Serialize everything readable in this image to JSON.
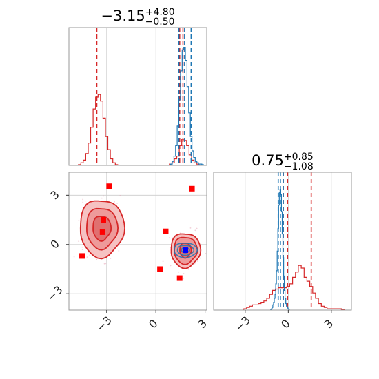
{
  "colors": {
    "blue": "#1f77b4",
    "red": "#d62728",
    "marker_red": "#ff0000",
    "marker_blue": "#0000ff",
    "grid": "#cccccc",
    "frame": "#999999"
  },
  "chart_data": {
    "type": "corner",
    "grid": true,
    "parameters": 2,
    "titles": [
      {
        "value": "−3.15",
        "plus": "+4.80",
        "minus": "−0.50"
      },
      {
        "value": "0.75",
        "plus": "+0.85",
        "minus": "−1.08"
      }
    ],
    "ticks": {
      "param1": [
        {
          "value": -3,
          "label": "−3"
        },
        {
          "value": 0,
          "label": "0"
        },
        {
          "value": 3,
          "label": "3"
        }
      ],
      "param2": [
        {
          "value": -3,
          "label": "−3"
        },
        {
          "value": 0,
          "label": "0"
        },
        {
          "value": 3,
          "label": "3"
        }
      ]
    },
    "xlim_param1": [
      -5.3,
      3.1
    ],
    "xlim_param2": [
      -5.2,
      4.4
    ],
    "ylim_param2": [
      -4.0,
      4.4
    ],
    "marginal_param1": {
      "xlim": [
        -5.3,
        3.1
      ],
      "ylim": [
        0,
        1.05
      ],
      "series": [
        {
          "name": "red",
          "color": "red",
          "bin_width": 0.15,
          "bins": [
            {
              "x": -4.65,
              "v": 0.005
            },
            {
              "x": -4.5,
              "v": 0.02
            },
            {
              "x": -4.35,
              "v": 0.04
            },
            {
              "x": -4.2,
              "v": 0.09
            },
            {
              "x": -4.05,
              "v": 0.17
            },
            {
              "x": -3.9,
              "v": 0.29
            },
            {
              "x": -3.75,
              "v": 0.43
            },
            {
              "x": -3.6,
              "v": 0.52
            },
            {
              "x": -3.45,
              "v": 0.54
            },
            {
              "x": -3.3,
              "v": 0.49
            },
            {
              "x": -3.15,
              "v": 0.36
            },
            {
              "x": -3.0,
              "v": 0.22
            },
            {
              "x": -2.85,
              "v": 0.12
            },
            {
              "x": -2.7,
              "v": 0.05
            },
            {
              "x": -2.55,
              "v": 0.02
            },
            {
              "x": -2.4,
              "v": 0.005
            },
            {
              "x": 0.9,
              "v": 0.01
            },
            {
              "x": 1.05,
              "v": 0.02
            },
            {
              "x": 1.2,
              "v": 0.05
            },
            {
              "x": 1.35,
              "v": 0.07
            },
            {
              "x": 1.5,
              "v": 0.15
            },
            {
              "x": 1.65,
              "v": 0.2
            },
            {
              "x": 1.8,
              "v": 0.19
            },
            {
              "x": 1.95,
              "v": 0.15
            },
            {
              "x": 2.1,
              "v": 0.08
            },
            {
              "x": 2.25,
              "v": 0.04
            },
            {
              "x": 2.4,
              "v": 0.02
            },
            {
              "x": 2.55,
              "v": 0.01
            }
          ],
          "quantiles": [
            -3.6,
            1.45,
            1.65
          ]
        },
        {
          "name": "blue",
          "color": "blue",
          "bin_width": 0.1,
          "bins": [
            {
              "x": 0.95,
              "v": 0.01
            },
            {
              "x": 1.05,
              "v": 0.03
            },
            {
              "x": 1.15,
              "v": 0.07
            },
            {
              "x": 1.25,
              "v": 0.15
            },
            {
              "x": 1.35,
              "v": 0.3
            },
            {
              "x": 1.45,
              "v": 0.5
            },
            {
              "x": 1.55,
              "v": 0.72
            },
            {
              "x": 1.65,
              "v": 0.88
            },
            {
              "x": 1.75,
              "v": 0.9
            },
            {
              "x": 1.85,
              "v": 0.8
            },
            {
              "x": 1.95,
              "v": 0.6
            },
            {
              "x": 2.05,
              "v": 0.4
            },
            {
              "x": 2.15,
              "v": 0.22
            },
            {
              "x": 2.25,
              "v": 0.11
            },
            {
              "x": 2.35,
              "v": 0.06
            },
            {
              "x": 2.45,
              "v": 0.03
            },
            {
              "x": 2.55,
              "v": 0.02
            },
            {
              "x": 2.65,
              "v": 0.01
            },
            {
              "x": 2.75,
              "v": 0.01
            },
            {
              "x": 2.85,
              "v": 0.005
            }
          ],
          "quantiles": [
            1.4,
            1.75,
            2.15
          ]
        }
      ]
    },
    "marginal_param2": {
      "xlim": [
        -5.2,
        4.4
      ],
      "ylim": [
        0,
        1.05
      ],
      "series": [
        {
          "name": "red",
          "color": "red",
          "bin_width": 0.2,
          "bins": [
            {
              "x": -3.0,
              "v": 0.01
            },
            {
              "x": -2.8,
              "v": 0.02
            },
            {
              "x": -2.6,
              "v": 0.03
            },
            {
              "x": -2.4,
              "v": 0.04
            },
            {
              "x": -2.2,
              "v": 0.04
            },
            {
              "x": -2.0,
              "v": 0.05
            },
            {
              "x": -1.8,
              "v": 0.06
            },
            {
              "x": -1.6,
              "v": 0.07
            },
            {
              "x": -1.4,
              "v": 0.09
            },
            {
              "x": -1.2,
              "v": 0.12
            },
            {
              "x": -1.0,
              "v": 0.15
            },
            {
              "x": -0.8,
              "v": 0.16
            },
            {
              "x": -0.6,
              "v": 0.17
            },
            {
              "x": -0.4,
              "v": 0.17
            },
            {
              "x": -0.2,
              "v": 0.17
            },
            {
              "x": 0.0,
              "v": 0.18
            },
            {
              "x": 0.2,
              "v": 0.2
            },
            {
              "x": 0.4,
              "v": 0.25
            },
            {
              "x": 0.6,
              "v": 0.29
            },
            {
              "x": 0.8,
              "v": 0.34
            },
            {
              "x": 1.0,
              "v": 0.32
            },
            {
              "x": 1.2,
              "v": 0.25
            },
            {
              "x": 1.4,
              "v": 0.22
            },
            {
              "x": 1.6,
              "v": 0.18
            },
            {
              "x": 1.8,
              "v": 0.13
            },
            {
              "x": 2.0,
              "v": 0.09
            },
            {
              "x": 2.2,
              "v": 0.05
            },
            {
              "x": 2.4,
              "v": 0.03
            },
            {
              "x": 2.6,
              "v": 0.02
            },
            {
              "x": 2.8,
              "v": 0.01
            },
            {
              "x": 3.0,
              "v": 0.01
            },
            {
              "x": 3.2,
              "v": 0.01
            },
            {
              "x": 3.4,
              "v": 0.01
            },
            {
              "x": 3.6,
              "v": 0.01
            },
            {
              "x": 3.8,
              "v": 0.005
            }
          ],
          "quantiles": [
            -0.35,
            -0.05,
            1.6
          ]
        },
        {
          "name": "blue",
          "color": "blue",
          "bin_width": 0.05,
          "bins": [
            {
              "x": -1.2,
              "v": 0.005
            },
            {
              "x": -1.15,
              "v": 0.01
            },
            {
              "x": -1.1,
              "v": 0.02
            },
            {
              "x": -1.05,
              "v": 0.04
            },
            {
              "x": -1.0,
              "v": 0.06
            },
            {
              "x": -0.95,
              "v": 0.09
            },
            {
              "x": -0.9,
              "v": 0.12
            },
            {
              "x": -0.85,
              "v": 0.2
            },
            {
              "x": -0.8,
              "v": 0.3
            },
            {
              "x": -0.75,
              "v": 0.45
            },
            {
              "x": -0.7,
              "v": 0.62
            },
            {
              "x": -0.65,
              "v": 0.8
            },
            {
              "x": -0.6,
              "v": 0.9
            },
            {
              "x": -0.55,
              "v": 0.92
            },
            {
              "x": -0.5,
              "v": 0.88
            },
            {
              "x": -0.45,
              "v": 0.75
            },
            {
              "x": -0.4,
              "v": 0.58
            },
            {
              "x": -0.35,
              "v": 0.4
            },
            {
              "x": -0.3,
              "v": 0.26
            },
            {
              "x": -0.25,
              "v": 0.15
            },
            {
              "x": -0.2,
              "v": 0.09
            },
            {
              "x": -0.15,
              "v": 0.05
            },
            {
              "x": -0.1,
              "v": 0.03
            },
            {
              "x": -0.05,
              "v": 0.02
            },
            {
              "x": 0.0,
              "v": 0.01
            },
            {
              "x": 0.05,
              "v": 0.005
            }
          ],
          "quantiles": [
            -0.7,
            -0.55,
            -0.35
          ]
        }
      ]
    },
    "joint": {
      "xlim": [
        -5.3,
        3.1
      ],
      "ylim": [
        -4.0,
        4.4
      ],
      "red_contours": [
        {
          "cx": -3.3,
          "cy": 1.0,
          "levels": [
            [
              1.35,
              1.75
            ],
            [
              0.95,
              1.25
            ],
            [
              0.55,
              0.75
            ]
          ]
        },
        {
          "cx": 1.8,
          "cy": -0.35,
          "levels": [
            [
              0.9,
              1.05
            ],
            [
              0.7,
              0.82
            ],
            [
              0.35,
              0.45
            ]
          ]
        }
      ],
      "blue_contours": [
        {
          "cx": 1.8,
          "cy": -0.35,
          "levels": [
            [
              0.7,
              0.45
            ],
            [
              0.5,
              0.3
            ],
            [
              0.25,
              0.15
            ]
          ]
        }
      ],
      "red_markers": [
        {
          "x": -2.85,
          "y": 3.55
        },
        {
          "x": -3.2,
          "y": 1.5
        },
        {
          "x": -3.25,
          "y": 0.75
        },
        {
          "x": -4.5,
          "y": -0.7
        },
        {
          "x": 0.6,
          "y": 0.8
        },
        {
          "x": 0.25,
          "y": -1.5
        },
        {
          "x": 1.45,
          "y": -2.05
        },
        {
          "x": 2.2,
          "y": 3.4
        }
      ],
      "blue_marker": {
        "x": 1.8,
        "y": -0.35
      }
    }
  }
}
